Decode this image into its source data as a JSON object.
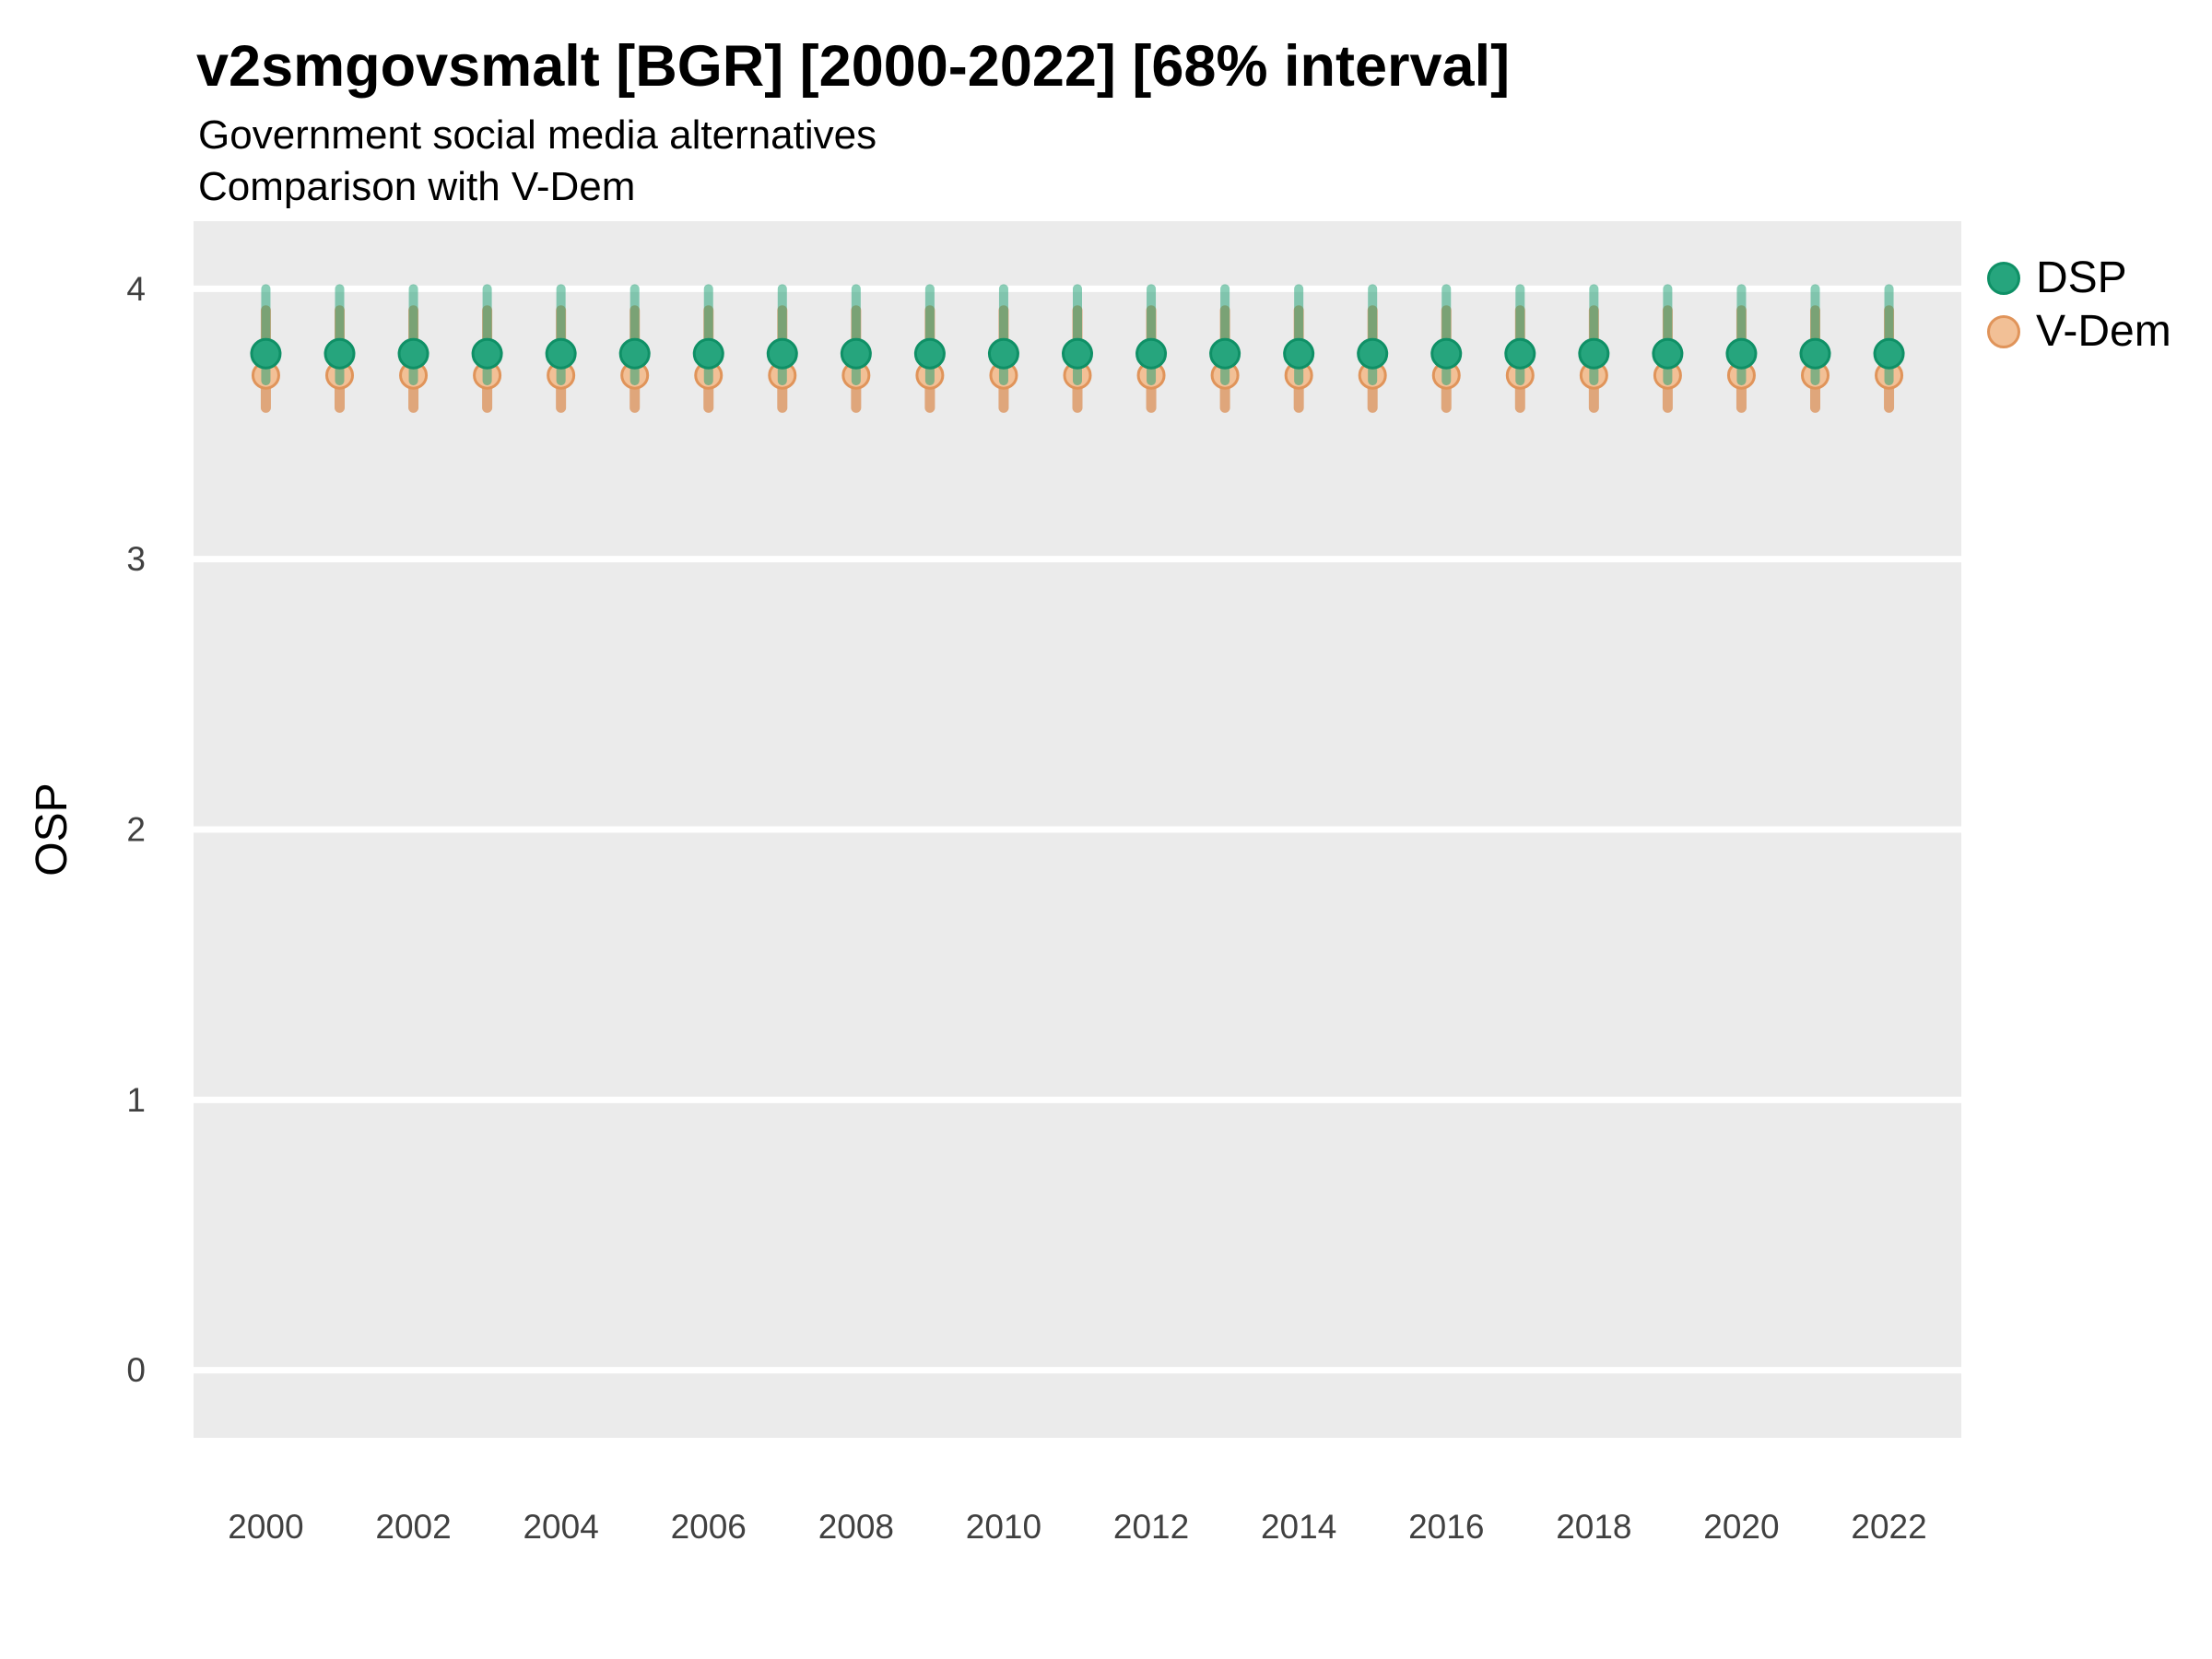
{
  "header": {
    "title": "v2smgovsmalt [BGR] [2000-2022] [68% interval]",
    "subtitle": "Government social media alternatives",
    "subtitle2": "Comparison with V-Dem"
  },
  "legend": {
    "items": [
      {
        "label": "DSP",
        "fill": "#26a57d",
        "stroke": "#0f9066"
      },
      {
        "label": "V-Dem",
        "fill": "#f2c096",
        "stroke": "#e0945a"
      }
    ],
    "position": "right-top"
  },
  "colors": {
    "background": "#ffffff",
    "panel_bg": "#ebebeb",
    "gridline": "#ffffff",
    "axis_text": "#404040",
    "dsp_bar": "#169e6f",
    "dsp_point_fill": "#26a57d",
    "dsp_point_stroke": "#0f9066",
    "vdem_bar": "#d9813f",
    "vdem_point_fill": "#f2c096",
    "vdem_point_stroke": "#e0945a"
  },
  "chart_data": {
    "type": "pointrange",
    "title": "v2smgovsmalt [BGR] [2000-2022] [68% interval]",
    "subtitle": "Government social media alternatives",
    "comparison_note": "Comparison with V-Dem",
    "xlabel": "",
    "ylabel": "OSP",
    "interval": "68%",
    "country": "BGR",
    "grid": "major-horizontal-only",
    "legend_position": "right",
    "x": [
      2000,
      2001,
      2002,
      2003,
      2004,
      2005,
      2006,
      2007,
      2008,
      2009,
      2010,
      2011,
      2012,
      2013,
      2014,
      2015,
      2016,
      2017,
      2018,
      2019,
      2020,
      2021,
      2022
    ],
    "xticks": [
      2000,
      2002,
      2004,
      2006,
      2008,
      2010,
      2012,
      2014,
      2016,
      2018,
      2020,
      2022
    ],
    "yticks": [
      0,
      1,
      2,
      3,
      4
    ],
    "ylim": [
      -0.25,
      4.25
    ],
    "xlim": [
      1999.02,
      2022.98
    ],
    "series": [
      {
        "name": "DSP",
        "bar_color": "#169e6f",
        "bar_opacity": 0.5,
        "point_fill": "#26a57d",
        "point_stroke": "#0f9066",
        "y": [
          3.76,
          3.76,
          3.76,
          3.76,
          3.76,
          3.76,
          3.76,
          3.76,
          3.76,
          3.76,
          3.76,
          3.76,
          3.76,
          3.76,
          3.76,
          3.76,
          3.76,
          3.76,
          3.76,
          3.76,
          3.76,
          3.76,
          3.76
        ],
        "lo": [
          3.66,
          3.66,
          3.66,
          3.66,
          3.66,
          3.66,
          3.66,
          3.66,
          3.66,
          3.66,
          3.66,
          3.66,
          3.66,
          3.66,
          3.66,
          3.66,
          3.66,
          3.66,
          3.66,
          3.66,
          3.66,
          3.66,
          3.66
        ],
        "hi": [
          4.0,
          4.0,
          4.0,
          4.0,
          4.0,
          4.0,
          4.0,
          4.0,
          4.0,
          4.0,
          4.0,
          4.0,
          4.0,
          4.0,
          4.0,
          4.0,
          4.0,
          4.0,
          4.0,
          4.0,
          4.0,
          4.0,
          4.0
        ]
      },
      {
        "name": "V-Dem",
        "bar_color": "#d9813f",
        "bar_opacity": 0.65,
        "point_fill": "#f2c096",
        "point_stroke": "#e0945a",
        "y": [
          3.68,
          3.68,
          3.68,
          3.68,
          3.68,
          3.68,
          3.68,
          3.68,
          3.68,
          3.68,
          3.68,
          3.68,
          3.68,
          3.68,
          3.68,
          3.68,
          3.68,
          3.68,
          3.68,
          3.68,
          3.68,
          3.68,
          3.68
        ],
        "lo": [
          3.56,
          3.56,
          3.56,
          3.56,
          3.56,
          3.56,
          3.56,
          3.56,
          3.56,
          3.56,
          3.56,
          3.56,
          3.56,
          3.56,
          3.56,
          3.56,
          3.56,
          3.56,
          3.56,
          3.56,
          3.56,
          3.56,
          3.56
        ],
        "hi": [
          3.92,
          3.92,
          3.92,
          3.92,
          3.92,
          3.92,
          3.92,
          3.92,
          3.92,
          3.92,
          3.92,
          3.92,
          3.92,
          3.92,
          3.92,
          3.92,
          3.92,
          3.92,
          3.92,
          3.92,
          3.92,
          3.92,
          3.92
        ]
      }
    ]
  }
}
